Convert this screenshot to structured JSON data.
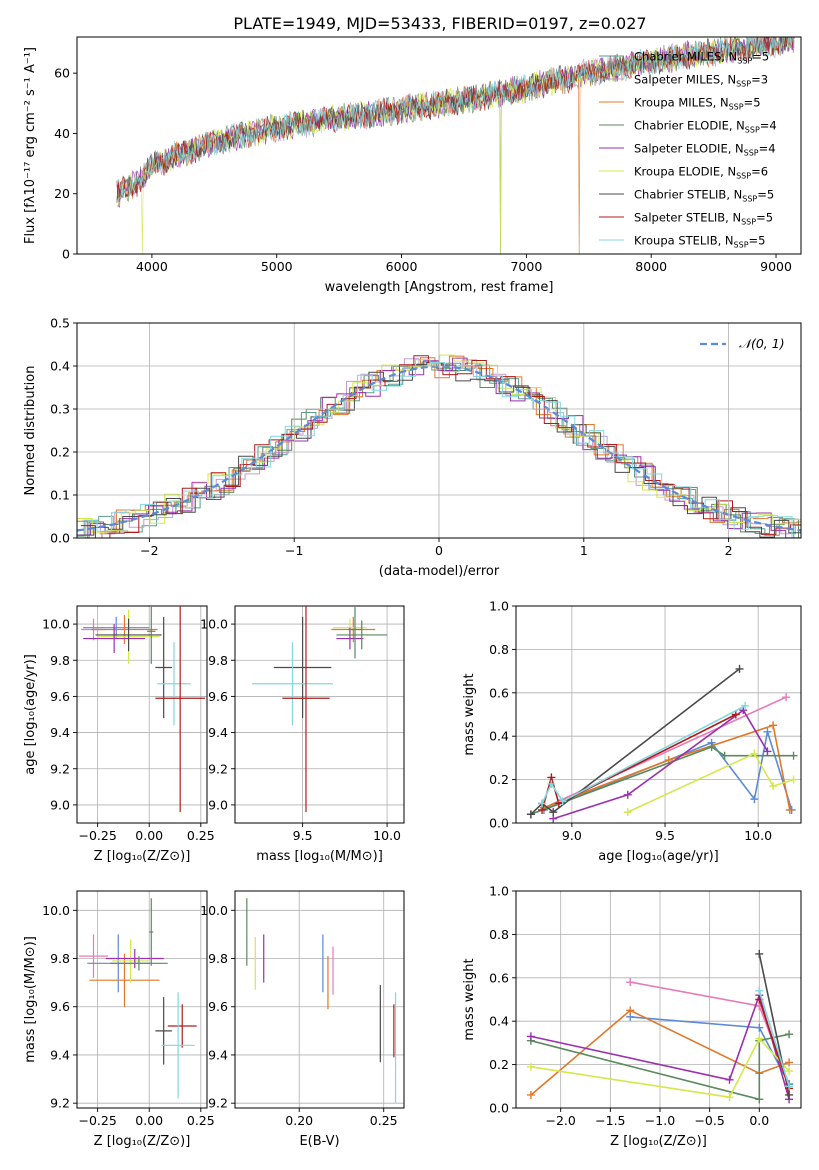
{
  "figure": {
    "title": "PLATE=1949, MJD=53433, FIBERID=0197, z=0.027"
  },
  "colors": {
    "Chabrier MILES": "#5a9e8e",
    "Salpeter MILES": "#c39bd3",
    "Kroupa MILES": "#e0782a",
    "Chabrier ELODIE": "#5a8a5e",
    "Salpeter ELODIE": "#9b2fb0",
    "Kroupa ELODIE": "#d4e84a",
    "Chabrier STELIB": "#4a4a4a",
    "Salpeter STELIB": "#b01c1c",
    "Kroupa STELIB": "#80d8e0",
    "blue": "#5b8ad6",
    "pink": "#e87ab8",
    "grid": "#b0b0b0"
  },
  "chart_data": [
    {
      "id": "spectrum",
      "type": "line",
      "xlabel": "wavelength [Angstrom, rest frame]",
      "ylabel": "Flux [fλ10⁻¹⁷ erg cm⁻² s⁻¹ A⁻¹]",
      "xlim": [
        3400,
        9200
      ],
      "ylim": [
        0,
        72
      ],
      "xticks": [
        4000,
        5000,
        6000,
        7000,
        8000,
        9000
      ],
      "yticks": [
        0,
        20,
        40,
        60
      ],
      "grid": false,
      "legend_position": "top-right",
      "continuum": [
        [
          3720,
          20
        ],
        [
          3900,
          24
        ],
        [
          4000,
          29
        ],
        [
          4200,
          33
        ],
        [
          4500,
          37
        ],
        [
          5000,
          42
        ],
        [
          5500,
          45
        ],
        [
          6000,
          48
        ],
        [
          6500,
          51
        ],
        [
          7000,
          55
        ],
        [
          7500,
          60
        ],
        [
          8000,
          64
        ],
        [
          8500,
          67
        ],
        [
          9000,
          70
        ],
        [
          9100,
          71
        ]
      ],
      "dropouts": [
        3920,
        6790,
        7420
      ],
      "series": [
        {
          "name": "Chabrier MILES",
          "ssp": "5",
          "color_key": "Chabrier MILES"
        },
        {
          "name": "Salpeter MILES",
          "ssp": "3",
          "color_key": "Salpeter MILES"
        },
        {
          "name": "Kroupa MILES",
          "ssp": "5",
          "color_key": "Kroupa MILES"
        },
        {
          "name": "Chabrier ELODIE",
          "ssp": "4",
          "color_key": "Chabrier ELODIE"
        },
        {
          "name": "Salpeter ELODIE",
          "ssp": "4",
          "color_key": "Salpeter ELODIE"
        },
        {
          "name": "Kroupa ELODIE",
          "ssp": "6",
          "color_key": "Kroupa ELODIE"
        },
        {
          "name": "Chabrier STELIB",
          "ssp": "5",
          "color_key": "Chabrier STELIB"
        },
        {
          "name": "Salpeter STELIB",
          "ssp": "5",
          "color_key": "Salpeter STELIB"
        },
        {
          "name": "Kroupa STELIB",
          "ssp": "5",
          "color_key": "Kroupa STELIB"
        }
      ]
    },
    {
      "id": "residuals",
      "type": "histogram",
      "xlabel": "(data-model)/error",
      "ylabel": "Normed distribution",
      "xlim": [
        -2.5,
        2.5
      ],
      "ylim": [
        0,
        0.5
      ],
      "xticks": [
        -2,
        -1,
        0,
        1,
        2
      ],
      "xticklabels": [
        "−2",
        "−1",
        "0",
        "1",
        "2"
      ],
      "yticks": [
        0.0,
        0.1,
        0.2,
        0.3,
        0.4,
        0.5
      ],
      "grid": true,
      "legend_position": "top-right",
      "reference": {
        "label": "𝒩(0, 1)",
        "color_key": "blue"
      }
    },
    {
      "id": "age_vs_Z",
      "type": "errorbar",
      "xlabel": "Z [log₁₀(Z/Z⊙)]",
      "ylabel": "age  [log₁₀(age/yr)]",
      "xlim": [
        -0.35,
        0.28
      ],
      "ylim": [
        8.9,
        10.1
      ],
      "xticks": [
        -0.25,
        0.0,
        0.25
      ],
      "xticklabels": [
        "−0.25",
        "0.00",
        "0.25"
      ],
      "yticks": [
        9.0,
        9.2,
        9.4,
        9.6,
        9.8,
        10.0
      ],
      "grid": true,
      "points": [
        {
          "x": -0.27,
          "xerr": 0.06,
          "y": 9.97,
          "yerr": 0.06,
          "color_key": "pink"
        },
        {
          "x": -0.16,
          "xerr": 0.16,
          "y": 9.98,
          "yerr": 0.06,
          "color_key": "blue"
        },
        {
          "x": -0.12,
          "xerr": 0.16,
          "y": 9.97,
          "yerr": 0.08,
          "color_key": "Kroupa MILES"
        },
        {
          "x": -0.1,
          "xerr": 0.15,
          "y": 9.93,
          "yerr": 0.15,
          "color_key": "Kroupa ELODIE"
        },
        {
          "x": -0.17,
          "xerr": 0.15,
          "y": 9.92,
          "yerr": 0.08,
          "color_key": "Salpeter ELODIE"
        },
        {
          "x": -0.1,
          "xerr": 0.16,
          "y": 9.94,
          "yerr": 0.09,
          "color_key": "Chabrier STELIB"
        },
        {
          "x": 0.01,
          "xerr": 0.02,
          "y": 9.96,
          "yerr": 0.18,
          "color_key": "Chabrier ELODIE"
        },
        {
          "x": 0.07,
          "xerr": 0.04,
          "y": 9.76,
          "yerr": 0.28,
          "color_key": "Chabrier STELIB"
        },
        {
          "x": 0.12,
          "xerr": 0.08,
          "y": 9.67,
          "yerr": 0.23,
          "color_key": "Kroupa STELIB"
        },
        {
          "x": 0.15,
          "xerr": 0.12,
          "y": 9.59,
          "yerr": 0.63,
          "color_key": "Salpeter STELIB"
        }
      ]
    },
    {
      "id": "age_vs_mass",
      "type": "errorbar",
      "xlabel": "mass [log₁₀(M/M⊙)]",
      "ylabel": "",
      "xlim": [
        9.1,
        10.1
      ],
      "ylim": [
        8.9,
        10.1
      ],
      "xticks": [
        9.5,
        10.0
      ],
      "xticklabels": [
        "9.5",
        "10.0"
      ],
      "yticks": [
        9.0,
        9.2,
        9.4,
        9.6,
        9.8,
        10.0
      ],
      "grid": true,
      "points": [
        {
          "x": 9.8,
          "xerr": 0.13,
          "y": 9.97,
          "yerr": 0.07,
          "color_key": "Kroupa MILES"
        },
        {
          "x": 9.78,
          "xerr": 0.1,
          "y": 9.98,
          "yerr": 0.05,
          "color_key": "Kroupa ELODIE"
        },
        {
          "x": 9.78,
          "xerr": 0.08,
          "y": 9.92,
          "yerr": 0.06,
          "color_key": "Salpeter ELODIE"
        },
        {
          "x": 9.85,
          "xerr": 0.15,
          "y": 9.94,
          "yerr": 0.08,
          "color_key": "Chabrier ELODIE"
        },
        {
          "x": 9.81,
          "xerr": 0.04,
          "y": 9.97,
          "yerr": 0.16,
          "color_key": "Chabrier ELODIE"
        },
        {
          "x": 9.5,
          "xerr": 0.17,
          "y": 9.76,
          "yerr": 0.28,
          "color_key": "Chabrier STELIB"
        },
        {
          "x": 9.44,
          "xerr": 0.24,
          "y": 9.67,
          "yerr": 0.23,
          "color_key": "Kroupa STELIB"
        },
        {
          "x": 9.52,
          "xerr": 0.14,
          "y": 9.59,
          "yerr": 0.63,
          "color_key": "Salpeter STELIB"
        }
      ]
    },
    {
      "id": "mass_weight_vs_age",
      "type": "line",
      "xlabel": "age  [log₁₀(age/yr)]",
      "ylabel": "mass weight",
      "xlim": [
        8.7,
        10.23
      ],
      "ylim": [
        0,
        1
      ],
      "xticks": [
        9.0,
        9.5,
        10.0
      ],
      "xticklabels": [
        "9.0",
        "9.5",
        "10.0"
      ],
      "yticks": [
        0.0,
        0.2,
        0.4,
        0.6,
        0.8,
        1.0
      ],
      "grid": true,
      "series": [
        {
          "color_key": "pink",
          "points": [
            [
              8.85,
              0.07
            ],
            [
              10.15,
              0.58
            ]
          ]
        },
        {
          "color_key": "blue",
          "points": [
            [
              8.85,
              0.06
            ],
            [
              9.75,
              0.37
            ],
            [
              9.98,
              0.11
            ],
            [
              10.05,
              0.42
            ],
            [
              10.18,
              0.06
            ]
          ]
        },
        {
          "color_key": "Kroupa MILES",
          "points": [
            [
              8.85,
              0.07
            ],
            [
              9.52,
              0.29
            ],
            [
              10.08,
              0.45
            ],
            [
              10.17,
              0.06
            ]
          ]
        },
        {
          "color_key": "Chabrier ELODIE",
          "points": [
            [
              8.78,
              0.04
            ],
            [
              9.75,
              0.35
            ],
            [
              9.82,
              0.31
            ],
            [
              10.19,
              0.31
            ]
          ]
        },
        {
          "color_key": "Salpeter ELODIE",
          "points": [
            [
              8.9,
              0.02
            ],
            [
              9.3,
              0.13
            ],
            [
              9.92,
              0.52
            ],
            [
              10.05,
              0.33
            ]
          ]
        },
        {
          "color_key": "Kroupa ELODIE",
          "points": [
            [
              9.3,
              0.05
            ],
            [
              9.98,
              0.32
            ],
            [
              10.08,
              0.17
            ],
            [
              10.19,
              0.2
            ]
          ]
        },
        {
          "color_key": "Chabrier STELIB",
          "points": [
            [
              8.78,
              0.04
            ],
            [
              8.84,
              0.09
            ],
            [
              8.9,
              0.05
            ],
            [
              9.9,
              0.71
            ]
          ]
        },
        {
          "color_key": "Salpeter STELIB",
          "points": [
            [
              8.84,
              0.06
            ],
            [
              8.89,
              0.21
            ],
            [
              8.93,
              0.09
            ],
            [
              9.88,
              0.5
            ]
          ]
        },
        {
          "color_key": "Kroupa STELIB",
          "points": [
            [
              8.84,
              0.09
            ],
            [
              8.89,
              0.18
            ],
            [
              8.95,
              0.1
            ],
            [
              9.93,
              0.54
            ]
          ]
        }
      ]
    },
    {
      "id": "mass_vs_Z",
      "type": "errorbar",
      "xlabel": "Z [log₁₀(Z/Z⊙)]",
      "ylabel": "mass [log₁₀(M/M⊙)]",
      "xlim": [
        -0.35,
        0.28
      ],
      "ylim": [
        9.18,
        10.08
      ],
      "xticks": [
        -0.25,
        0.0,
        0.25
      ],
      "xticklabels": [
        "−0.25",
        "0.00",
        "0.25"
      ],
      "yticks": [
        9.2,
        9.4,
        9.6,
        9.8,
        10.0
      ],
      "grid": true,
      "points": [
        {
          "x": -0.27,
          "xerr": 0.07,
          "y": 9.81,
          "yerr": 0.09,
          "color_key": "pink"
        },
        {
          "x": -0.15,
          "xerr": 0.15,
          "y": 9.78,
          "yerr": 0.12,
          "color_key": "blue"
        },
        {
          "x": -0.12,
          "xerr": 0.17,
          "y": 9.71,
          "yerr": 0.11,
          "color_key": "Kroupa MILES"
        },
        {
          "x": -0.09,
          "xerr": 0.09,
          "y": 9.79,
          "yerr": 0.09,
          "color_key": "Kroupa ELODIE"
        },
        {
          "x": -0.07,
          "xerr": 0.14,
          "y": 9.8,
          "yerr": 0.04,
          "color_key": "Salpeter ELODIE"
        },
        {
          "x": -0.05,
          "xerr": 0.14,
          "y": 9.78,
          "yerr": 0.03,
          "color_key": "Chabrier ELODIE"
        },
        {
          "x": 0.01,
          "xerr": 0.01,
          "y": 9.91,
          "yerr": 0.14,
          "color_key": "Chabrier ELODIE"
        },
        {
          "x": 0.07,
          "xerr": 0.04,
          "y": 9.5,
          "yerr": 0.14,
          "color_key": "Chabrier STELIB"
        },
        {
          "x": 0.16,
          "xerr": 0.07,
          "y": 9.52,
          "yerr": 0.09,
          "color_key": "Salpeter STELIB"
        },
        {
          "x": 0.14,
          "xerr": 0.08,
          "y": 9.44,
          "yerr": 0.22,
          "color_key": "Kroupa STELIB"
        }
      ]
    },
    {
      "id": "mass_vs_ebv",
      "type": "errorbar",
      "xlabel": "E(B-V)",
      "ylabel": "",
      "xlim": [
        0.162,
        0.262
      ],
      "ylim": [
        9.18,
        10.08
      ],
      "xticks": [
        0.2,
        0.25
      ],
      "xticklabels": [
        "0.20",
        "0.25"
      ],
      "yticks": [
        9.2,
        9.4,
        9.6,
        9.8,
        10.0
      ],
      "grid": true,
      "points": [
        {
          "x": 0.169,
          "xerr": 0,
          "y": 9.91,
          "yerr": 0.14,
          "color_key": "Chabrier ELODIE"
        },
        {
          "x": 0.174,
          "xerr": 0,
          "y": 9.78,
          "yerr": 0.11,
          "color_key": "Kroupa ELODIE"
        },
        {
          "x": 0.179,
          "xerr": 0,
          "y": 9.8,
          "yerr": 0.1,
          "color_key": "Salpeter ELODIE"
        },
        {
          "x": 0.214,
          "xerr": 0,
          "y": 9.78,
          "yerr": 0.12,
          "color_key": "blue"
        },
        {
          "x": 0.217,
          "xerr": 0,
          "y": 9.7,
          "yerr": 0.11,
          "color_key": "Kroupa MILES"
        },
        {
          "x": 0.22,
          "xerr": 0,
          "y": 9.75,
          "yerr": 0.1,
          "color_key": "pink"
        },
        {
          "x": 0.248,
          "xerr": 0,
          "y": 9.53,
          "yerr": 0.16,
          "color_key": "Chabrier STELIB"
        },
        {
          "x": 0.256,
          "xerr": 0,
          "y": 9.5,
          "yerr": 0.11,
          "color_key": "Salpeter STELIB"
        },
        {
          "x": 0.257,
          "xerr": 0,
          "y": 9.43,
          "yerr": 0.23,
          "color_key": "Kroupa STELIB"
        }
      ]
    },
    {
      "id": "mass_weight_vs_Z",
      "type": "line",
      "xlabel": "Z [log₁₀(Z/Z⊙)]",
      "ylabel": "mass weight",
      "xlim": [
        -2.45,
        0.42
      ],
      "ylim": [
        0,
        1
      ],
      "xticks": [
        -2.0,
        -1.5,
        -1.0,
        -0.5,
        0.0
      ],
      "xticklabels": [
        "−2.0",
        "−1.5",
        "−1.0",
        "−0.5",
        "0.0"
      ],
      "yticks": [
        0.0,
        0.2,
        0.4,
        0.6,
        0.8,
        1.0
      ],
      "grid": true,
      "series": [
        {
          "color_key": "pink",
          "points": [
            [
              -1.3,
              0.58
            ],
            [
              0.0,
              0.47
            ],
            [
              0.3,
              0.11
            ]
          ]
        },
        {
          "color_key": "blue",
          "points": [
            [
              -1.3,
              0.42
            ],
            [
              0.0,
              0.37
            ],
            [
              0.3,
              0.11
            ]
          ]
        },
        {
          "color_key": "Kroupa MILES",
          "points": [
            [
              -2.3,
              0.06
            ],
            [
              -1.3,
              0.45
            ],
            [
              0.0,
              0.16
            ],
            [
              0.3,
              0.21
            ]
          ]
        },
        {
          "color_key": "Chabrier ELODIE",
          "points": [
            [
              -2.3,
              0.31
            ],
            [
              0.0,
              0.04
            ],
            [
              0.0,
              0.31
            ],
            [
              0.3,
              0.34
            ]
          ]
        },
        {
          "color_key": "Salpeter ELODIE",
          "points": [
            [
              -2.3,
              0.33
            ],
            [
              -0.3,
              0.13
            ],
            [
              0.0,
              0.52
            ],
            [
              0.3,
              0.04
            ]
          ]
        },
        {
          "color_key": "Kroupa ELODIE",
          "points": [
            [
              -2.3,
              0.19
            ],
            [
              -0.3,
              0.05
            ],
            [
              0.0,
              0.32
            ],
            [
              0.3,
              0.17
            ]
          ]
        },
        {
          "color_key": "Chabrier STELIB",
          "points": [
            [
              0.0,
              0.71
            ],
            [
              0.3,
              0.06
            ]
          ]
        },
        {
          "color_key": "Salpeter STELIB",
          "points": [
            [
              0.0,
              0.5
            ],
            [
              0.3,
              0.09
            ]
          ]
        },
        {
          "color_key": "Kroupa STELIB",
          "points": [
            [
              0.0,
              0.54
            ],
            [
              0.3,
              0.1
            ]
          ]
        }
      ]
    }
  ]
}
